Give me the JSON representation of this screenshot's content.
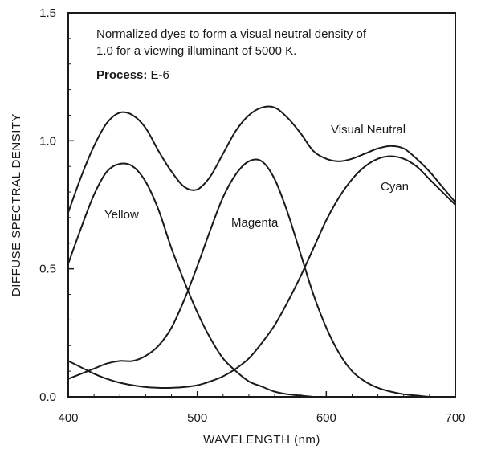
{
  "chart_data": {
    "type": "line",
    "xlabel": "WAVELENGTH (nm)",
    "ylabel": "DIFFUSE SPECTRAL DENSITY",
    "xlim": [
      400,
      700
    ],
    "ylim": [
      0,
      1.5
    ],
    "x_ticks": [
      400,
      500,
      600,
      700
    ],
    "x_tick_labels": [
      "400",
      "500",
      "600",
      "700"
    ],
    "y_ticks": [
      0,
      0.5,
      1.0,
      1.5
    ],
    "y_tick_labels": [
      "0.0",
      "0.5",
      "1.0",
      "1.5"
    ],
    "grid": false,
    "legend": "none",
    "annotation": {
      "line1": "Normalized dyes to form a visual neutral density of",
      "line2": "1.0 for a viewing illuminant of 5000 K.",
      "process_label": "Process:",
      "process_value": " E-6"
    },
    "series": [
      {
        "name": "Visual Neutral",
        "x": [
          400,
          410,
          420,
          430,
          440,
          450,
          460,
          470,
          480,
          490,
          500,
          510,
          520,
          530,
          540,
          550,
          560,
          570,
          580,
          590,
          600,
          610,
          620,
          630,
          640,
          650,
          660,
          670,
          680,
          690,
          700
        ],
        "y": [
          0.72,
          0.86,
          0.98,
          1.07,
          1.11,
          1.1,
          1.05,
          0.96,
          0.88,
          0.82,
          0.81,
          0.86,
          0.95,
          1.04,
          1.1,
          1.13,
          1.13,
          1.09,
          1.03,
          0.96,
          0.93,
          0.92,
          0.93,
          0.95,
          0.97,
          0.98,
          0.97,
          0.93,
          0.88,
          0.82,
          0.76
        ]
      },
      {
        "name": "Yellow",
        "x": [
          400,
          410,
          420,
          430,
          440,
          450,
          460,
          470,
          480,
          490,
          500,
          510,
          520,
          530,
          540,
          550,
          560,
          570,
          580,
          590,
          600,
          620,
          640,
          660,
          680,
          700
        ],
        "y": [
          0.52,
          0.66,
          0.79,
          0.88,
          0.91,
          0.9,
          0.84,
          0.73,
          0.58,
          0.45,
          0.33,
          0.23,
          0.15,
          0.1,
          0.06,
          0.04,
          0.02,
          0.01,
          0.005,
          0.0,
          0.0,
          0.0,
          0.0,
          0.0,
          0.0,
          0.0
        ]
      },
      {
        "name": "Magenta",
        "x": [
          400,
          410,
          420,
          430,
          440,
          450,
          460,
          470,
          480,
          490,
          500,
          510,
          520,
          530,
          540,
          550,
          560,
          570,
          580,
          590,
          600,
          610,
          620,
          630,
          640,
          650,
          660,
          670,
          680,
          690,
          700
        ],
        "y": [
          0.07,
          0.09,
          0.11,
          0.13,
          0.14,
          0.14,
          0.16,
          0.2,
          0.27,
          0.38,
          0.51,
          0.65,
          0.78,
          0.87,
          0.92,
          0.92,
          0.85,
          0.72,
          0.56,
          0.4,
          0.27,
          0.17,
          0.1,
          0.06,
          0.035,
          0.02,
          0.01,
          0.005,
          0.0,
          0.0,
          0.0
        ]
      },
      {
        "name": "Cyan",
        "x": [
          400,
          410,
          420,
          430,
          440,
          450,
          460,
          470,
          480,
          490,
          500,
          510,
          520,
          530,
          540,
          550,
          560,
          570,
          580,
          590,
          600,
          610,
          620,
          630,
          640,
          650,
          660,
          670,
          680,
          690,
          700
        ],
        "y": [
          0.14,
          0.115,
          0.09,
          0.07,
          0.055,
          0.045,
          0.038,
          0.035,
          0.035,
          0.038,
          0.045,
          0.06,
          0.08,
          0.11,
          0.15,
          0.21,
          0.28,
          0.37,
          0.47,
          0.58,
          0.69,
          0.78,
          0.85,
          0.9,
          0.93,
          0.94,
          0.93,
          0.9,
          0.85,
          0.8,
          0.75
        ]
      }
    ]
  }
}
